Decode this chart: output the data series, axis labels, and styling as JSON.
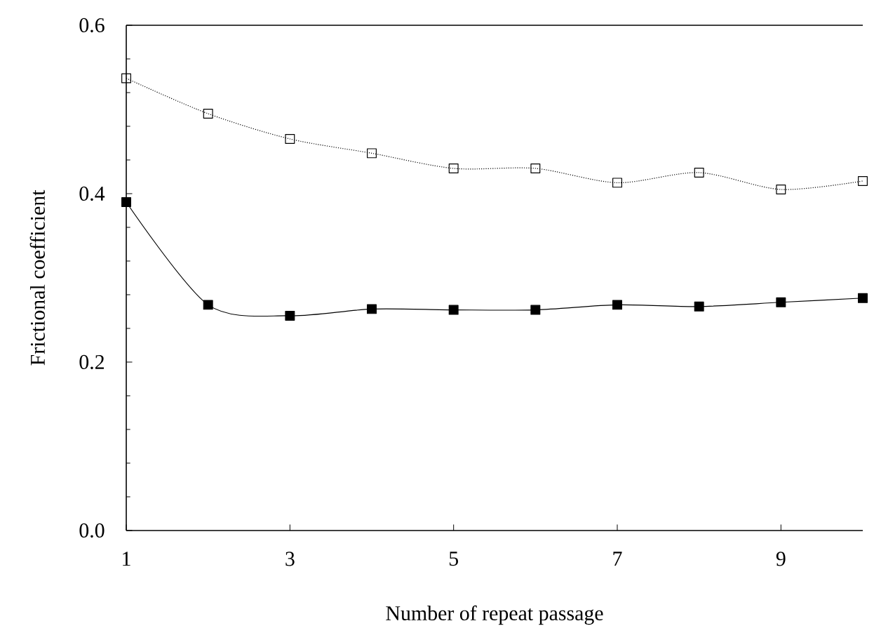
{
  "chart_data": {
    "type": "line",
    "xlabel": "Number of repeat passage",
    "ylabel": "Frictional coefficient",
    "x": [
      1,
      2,
      3,
      4,
      5,
      6,
      7,
      8,
      9,
      10
    ],
    "series": [
      {
        "color": "#000000",
        "marker": "square_open",
        "line_style": "dotted",
        "values": [
          0.537,
          0.495,
          0.465,
          0.448,
          0.43,
          0.43,
          0.413,
          0.425,
          0.405,
          0.415
        ]
      },
      {
        "color": "#000000",
        "marker": "square",
        "line_style": "solid",
        "values": [
          0.39,
          0.268,
          0.255,
          0.263,
          0.262,
          0.262,
          0.268,
          0.266,
          0.271,
          0.276
        ]
      }
    ],
    "xlim": [
      1,
      10
    ],
    "ylim": [
      0,
      0.6
    ],
    "xticks": [
      1,
      3,
      5,
      7,
      9
    ],
    "yticks": [
      {
        "value": 0,
        "label": "0.0"
      },
      {
        "value": 0.2,
        "label": "0.2"
      },
      {
        "value": 0.4,
        "label": "0.4"
      },
      {
        "value": 0.6,
        "label": "0.6"
      }
    ]
  }
}
